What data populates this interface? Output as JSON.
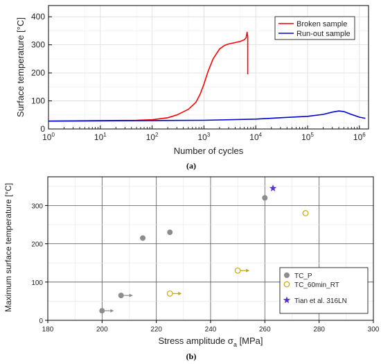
{
  "chart_data": [
    {
      "type": "line",
      "panel_label": "(a)",
      "xlabel": "Number of cycles",
      "ylabel": "Surface temperature [°C]",
      "xscale": "log",
      "xlim": [
        1,
        1500000
      ],
      "ylim": [
        0,
        440
      ],
      "x_ticks": [
        1,
        10,
        100,
        1000,
        10000,
        100000,
        1000000
      ],
      "x_tick_labels": [
        {
          "base": "10",
          "exp": "0"
        },
        {
          "base": "10",
          "exp": "1"
        },
        {
          "base": "10",
          "exp": "2"
        },
        {
          "base": "10",
          "exp": "3"
        },
        {
          "base": "10",
          "exp": "4"
        },
        {
          "base": "10",
          "exp": "5"
        },
        {
          "base": "10",
          "exp": "6"
        }
      ],
      "y_ticks": [
        0,
        100,
        200,
        300,
        400
      ],
      "y_tick_labels": [
        "0",
        "100",
        "200",
        "300",
        "400"
      ],
      "grid": true,
      "legend_position": "top-right",
      "series": [
        {
          "name": "Broken sample",
          "color": "#ff0000",
          "x": [
            1,
            10,
            50,
            100,
            200,
            300,
            500,
            700,
            850,
            1000,
            1200,
            1500,
            2000,
            2500,
            3000,
            4000,
            5000,
            6000,
            6500,
            6800,
            7000,
            7000,
            7000
          ],
          "y": [
            28,
            30,
            31,
            33,
            40,
            50,
            70,
            95,
            125,
            160,
            205,
            250,
            285,
            298,
            303,
            308,
            312,
            318,
            325,
            345,
            330,
            260,
            195
          ]
        },
        {
          "name": "Run-out sample",
          "color": "#0000cc",
          "x": [
            1,
            10,
            100,
            1000,
            10000,
            30000,
            100000,
            200000,
            300000,
            400000,
            500000,
            700000,
            1000000,
            1300000
          ],
          "y": [
            28,
            29,
            30,
            31,
            35,
            40,
            45,
            52,
            60,
            64,
            62,
            52,
            42,
            38
          ]
        }
      ]
    },
    {
      "type": "scatter",
      "panel_label": "(b)",
      "xlabel": {
        "text": "Stress amplitude σ",
        "sub": "a",
        "unit": " [MPa]"
      },
      "ylabel": "Maximum surface temperature [°C]",
      "xlim": [
        180,
        300
      ],
      "ylim": [
        0,
        375
      ],
      "x_ticks": [
        180,
        200,
        220,
        240,
        260,
        280,
        300
      ],
      "x_tick_labels": [
        "180",
        "200",
        "220",
        "240",
        "260",
        "280",
        "300"
      ],
      "y_ticks": [
        0,
        100,
        200,
        300
      ],
      "y_tick_labels": [
        "0",
        "100",
        "200",
        "300"
      ],
      "grid": true,
      "legend_position": "bottom-right",
      "series": [
        {
          "name": "TC_P",
          "marker": "filled-circle",
          "color": "#8c8c8c",
          "points": [
            {
              "x": 200,
              "y": 25,
              "runout": true
            },
            {
              "x": 207,
              "y": 65,
              "runout": true
            },
            {
              "x": 215,
              "y": 215,
              "runout": false
            },
            {
              "x": 225,
              "y": 230,
              "runout": false
            },
            {
              "x": 260,
              "y": 320,
              "runout": false
            }
          ]
        },
        {
          "name": "TC_60min_RT",
          "marker": "open-circle",
          "color": "#c8a800",
          "points": [
            {
              "x": 225,
              "y": 70,
              "runout": true
            },
            {
              "x": 250,
              "y": 130,
              "runout": true
            },
            {
              "x": 275,
              "y": 280,
              "runout": false
            }
          ]
        },
        {
          "name": "Tian et al. 316LN",
          "marker": "star",
          "color": "#5533cc",
          "points": [
            {
              "x": 263,
              "y": 345,
              "runout": false
            }
          ]
        }
      ]
    }
  ]
}
